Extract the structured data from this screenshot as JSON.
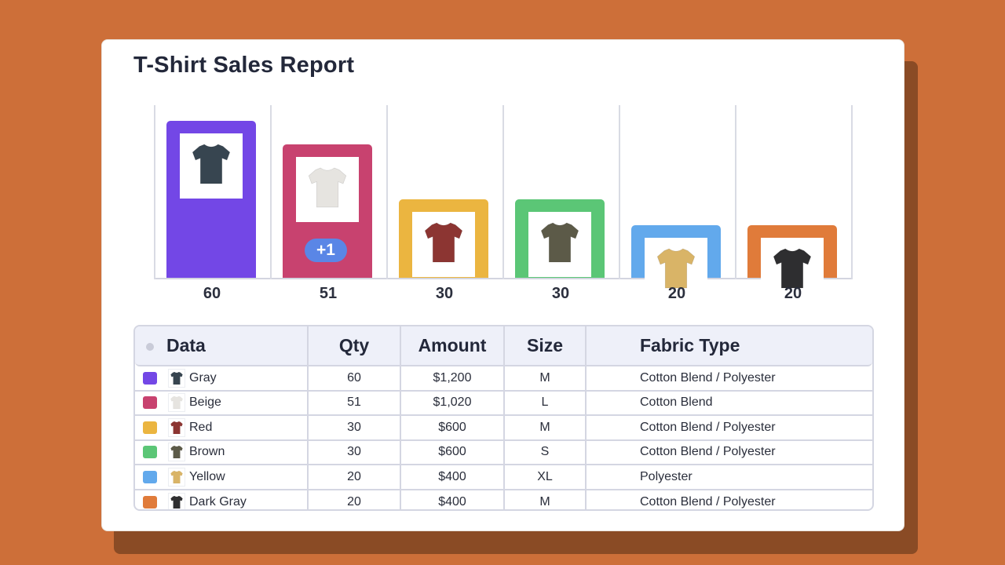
{
  "report": {
    "title": "T-Shirt Sales Report"
  },
  "chart_data": {
    "type": "bar",
    "title": "T-Shirt Sales Report",
    "xlabel": "",
    "ylabel": "Qty",
    "ylim": [
      0,
      70
    ],
    "grid": true,
    "categories": [
      "Gray",
      "Beige",
      "Red",
      "Brown",
      "Yellow",
      "Dark Gray"
    ],
    "values": [
      60,
      51,
      30,
      30,
      20,
      20
    ],
    "value_labels": [
      "60",
      "51",
      "30",
      "30",
      "20",
      "20"
    ],
    "colors": [
      "#7347e6",
      "#c8426f",
      "#ebb540",
      "#5bc676",
      "#62a9ec",
      "#e07b3a"
    ],
    "annotations": [
      {
        "category": "Beige",
        "text": "+1"
      }
    ]
  },
  "table": {
    "headers": [
      "Data",
      "Qty",
      "Amount",
      "Size",
      "Fabric Type"
    ],
    "rows": [
      {
        "name": "Gray",
        "qty": "60",
        "amount": "$1,200",
        "size": "M",
        "fabric": "Cotton Blend / Polyester",
        "color": "#7347e6",
        "shirt": "#374550"
      },
      {
        "name": "Beige",
        "qty": "51",
        "amount": "$1,020",
        "size": "L",
        "fabric": "Cotton Blend",
        "color": "#c8426f",
        "shirt": "#e6e4e0"
      },
      {
        "name": "Red",
        "qty": "30",
        "amount": "$600",
        "size": "M",
        "fabric": "Cotton Blend / Polyester",
        "color": "#ebb540",
        "shirt": "#8c3532"
      },
      {
        "name": "Brown",
        "qty": "30",
        "amount": "$600",
        "size": "S",
        "fabric": "Cotton Blend / Polyester",
        "color": "#5bc676",
        "shirt": "#5c5a48"
      },
      {
        "name": "Yellow",
        "qty": "20",
        "amount": "$400",
        "size": "XL",
        "fabric": "Polyester",
        "color": "#62a9ec",
        "shirt": "#d9b467"
      },
      {
        "name": "Dark Gray",
        "qty": "20",
        "amount": "$400",
        "size": "M",
        "fabric": "Cotton Blend / Polyester",
        "color": "#e07b3a",
        "shirt": "#2e2e30"
      }
    ]
  }
}
